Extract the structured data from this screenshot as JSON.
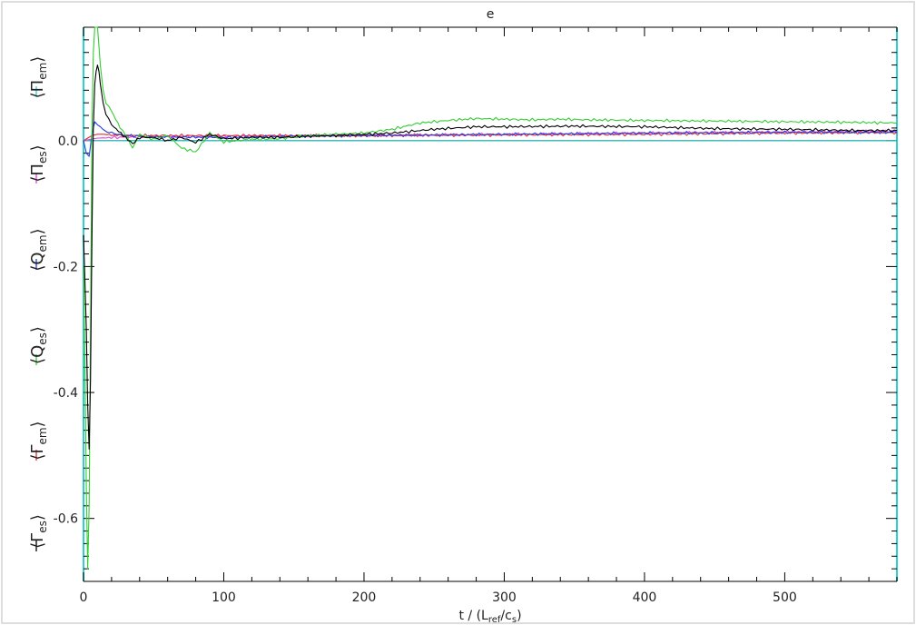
{
  "chart_data": {
    "type": "line",
    "title": "e",
    "xlabel": "t / (L_ref/c_s)",
    "xlabel_parts": {
      "t": "t / (L",
      "ref": "ref",
      "mid": "/c",
      "s": "s",
      "close": ")"
    },
    "ylabel": "",
    "xlim": [
      0,
      580
    ],
    "ylim": [
      -0.7,
      0.18
    ],
    "x_ticks": [
      0,
      100,
      200,
      300,
      400,
      500
    ],
    "x_tick_labels": [
      "0",
      "100",
      "200",
      "300",
      "400",
      "500"
    ],
    "y_ticks": [
      -0.6,
      -0.4,
      -0.2,
      0.0
    ],
    "y_tick_labels": [
      "-0.6",
      "-0.4",
      "-0.2",
      "0.0"
    ],
    "zero_line": true,
    "legend": [
      {
        "base": "Γ",
        "sub": "es",
        "color": "#000000"
      },
      {
        "base": "Γ",
        "sub": "em",
        "color": "#e03030"
      },
      {
        "base": "Q",
        "sub": "es",
        "color": "#33cc33"
      },
      {
        "base": "Q",
        "sub": "em",
        "color": "#2040e0"
      },
      {
        "base": "Π",
        "sub": "es",
        "color": "#e040e0"
      },
      {
        "base": "Π",
        "sub": "em",
        "color": "#30d0d0"
      }
    ],
    "series": [
      {
        "name": "Γ_es",
        "color": "#000000",
        "x": [
          0,
          1,
          2,
          3,
          4,
          5,
          6,
          7,
          8,
          9,
          10,
          11,
          12,
          14,
          16,
          18,
          20,
          25,
          30,
          35,
          40,
          50,
          60,
          70,
          80,
          90,
          100,
          120,
          140,
          160,
          180,
          200,
          220,
          250,
          280,
          300,
          350,
          400,
          450,
          500,
          550,
          580
        ],
        "y": [
          -0.15,
          -0.22,
          -0.3,
          -0.42,
          -0.49,
          -0.38,
          -0.15,
          0.02,
          0.09,
          0.11,
          0.12,
          0.11,
          0.09,
          0.06,
          0.04,
          0.035,
          0.025,
          0.015,
          0.005,
          -0.005,
          0.005,
          0.005,
          0.0,
          0.005,
          -0.003,
          0.01,
          0.003,
          0.005,
          0.005,
          0.007,
          0.008,
          0.01,
          0.012,
          0.018,
          0.022,
          0.022,
          0.023,
          0.022,
          0.019,
          0.018,
          0.016,
          0.016
        ]
      },
      {
        "name": "Γ_em",
        "color": "#e03030",
        "x": [
          0,
          3,
          6,
          10,
          15,
          20,
          30,
          50,
          100,
          150,
          200,
          300,
          400,
          500,
          580
        ],
        "y": [
          0.0,
          0.004,
          0.008,
          0.01,
          0.01,
          0.009,
          0.008,
          0.008,
          0.008,
          0.008,
          0.008,
          0.009,
          0.01,
          0.012,
          0.013
        ]
      },
      {
        "name": "Q_es",
        "color": "#33cc33",
        "x": [
          0,
          1,
          2,
          3,
          4,
          5,
          6,
          7,
          8,
          9,
          10,
          11,
          12,
          14,
          16,
          18,
          20,
          23,
          26,
          30,
          35,
          40,
          50,
          60,
          70,
          80,
          90,
          100,
          120,
          140,
          160,
          180,
          200,
          220,
          240,
          260,
          280,
          300,
          320,
          340,
          360,
          400,
          450,
          500,
          550,
          580
        ],
        "y": [
          -0.2,
          -0.35,
          -0.55,
          -0.68,
          -0.58,
          -0.3,
          0.02,
          0.14,
          0.18,
          0.19,
          0.18,
          0.15,
          0.12,
          0.08,
          0.06,
          0.055,
          0.045,
          0.035,
          0.02,
          0.01,
          -0.012,
          0.01,
          0.002,
          0.008,
          -0.012,
          -0.018,
          0.012,
          -0.002,
          0.002,
          0.003,
          0.008,
          0.01,
          0.012,
          0.018,
          0.028,
          0.032,
          0.035,
          0.034,
          0.033,
          0.034,
          0.033,
          0.032,
          0.031,
          0.03,
          0.029,
          0.028
        ]
      },
      {
        "name": "Q_em",
        "color": "#2040e0",
        "x": [
          0,
          2,
          4,
          6,
          8,
          10,
          12,
          15,
          20,
          30,
          50,
          100,
          150,
          200,
          300,
          400,
          500,
          580
        ],
        "y": [
          0.0,
          -0.02,
          -0.025,
          0.01,
          0.03,
          0.025,
          0.022,
          0.015,
          0.012,
          0.008,
          0.006,
          0.005,
          0.007,
          0.008,
          0.01,
          0.012,
          0.013,
          0.013
        ]
      },
      {
        "name": "Π_es",
        "color": "#e040e0",
        "x": [
          0,
          5,
          10,
          20,
          50,
          100,
          200,
          300,
          400,
          500,
          580
        ],
        "y": [
          0.0,
          0.002,
          0.004,
          0.005,
          0.006,
          0.007,
          0.008,
          0.01,
          0.012,
          0.014,
          0.015
        ]
      },
      {
        "name": "Π_em",
        "color": "#30d0d0",
        "x": [
          0,
          580
        ],
        "y": [
          0.0,
          0.0
        ]
      }
    ]
  }
}
